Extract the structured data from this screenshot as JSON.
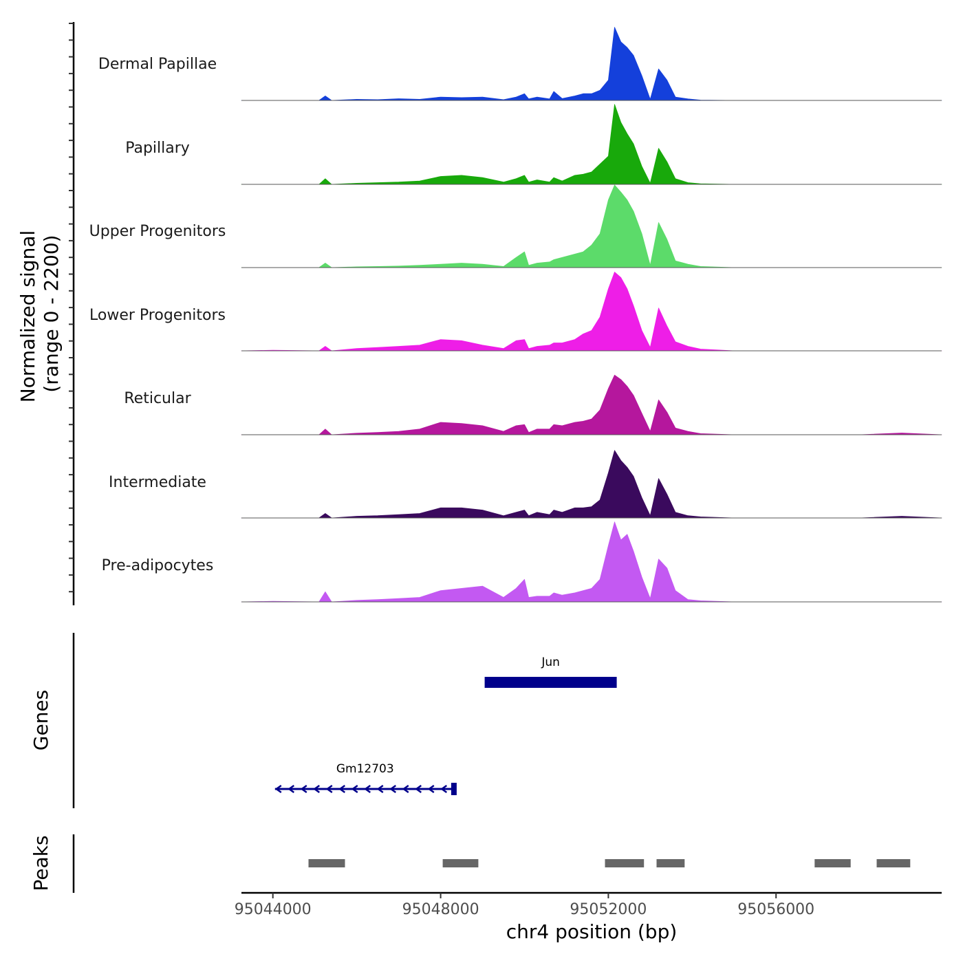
{
  "chart_data": {
    "type": "area",
    "title": "",
    "region": "chr4",
    "xlabel": "chr4 position (bp)",
    "xlim": [
      95043250,
      95059950
    ],
    "x_ticks": [
      "95044000",
      "95048000",
      "95052000",
      "95056000"
    ],
    "x_tick_values": [
      95044000,
      95048000,
      95052000,
      95056000
    ],
    "coverage": {
      "ylabel_line1": "Normalized signal",
      "ylabel_line2": "(range 0 - 2200)",
      "ylim": [
        0,
        2200
      ],
      "x_profile": [
        95043250,
        95044000,
        95045100,
        95045250,
        95045400,
        95046000,
        95046500,
        95047000,
        95047500,
        95048000,
        95048500,
        95049000,
        95049500,
        95049800,
        95050000,
        95050100,
        95050300,
        95050600,
        95050700,
        95050900,
        95051200,
        95051400,
        95051600,
        95051800,
        95052000,
        95052150,
        95052300,
        95052450,
        95052600,
        95052800,
        95053000,
        95053200,
        95053400,
        95053600,
        95053900,
        95054200,
        95055000,
        95056000,
        95057000,
        95058000,
        95059000,
        95059950
      ],
      "series": [
        {
          "name": "Dermal Papillae",
          "color": "#1440DB",
          "values": [
            0,
            0,
            0,
            120,
            0,
            30,
            20,
            45,
            30,
            90,
            75,
            90,
            20,
            90,
            180,
            40,
            90,
            40,
            240,
            50,
            120,
            180,
            180,
            270,
            540,
            1950,
            1560,
            1410,
            1200,
            660,
            30,
            840,
            540,
            90,
            40,
            10,
            0,
            0,
            0,
            0,
            0,
            0
          ]
        },
        {
          "name": "Papillary",
          "color": "#18A90B",
          "values": [
            0,
            0,
            0,
            150,
            0,
            30,
            45,
            60,
            90,
            210,
            240,
            180,
            60,
            150,
            240,
            60,
            120,
            60,
            180,
            90,
            240,
            270,
            330,
            540,
            750,
            2130,
            1650,
            1350,
            1080,
            480,
            30,
            960,
            600,
            150,
            45,
            15,
            0,
            0,
            0,
            0,
            0,
            0
          ]
        },
        {
          "name": "Upper Progenitors",
          "color": "#5CDB6A",
          "values": [
            0,
            0,
            0,
            120,
            0,
            20,
            30,
            40,
            60,
            90,
            120,
            90,
            30,
            270,
            420,
            60,
            120,
            150,
            210,
            270,
            360,
            420,
            600,
            900,
            1800,
            2200,
            2010,
            1800,
            1500,
            900,
            60,
            1200,
            750,
            180,
            90,
            30,
            0,
            0,
            0,
            0,
            0,
            0
          ]
        },
        {
          "name": "Lower Progenitors",
          "color": "#EE1EE7",
          "values": [
            0,
            15,
            0,
            120,
            0,
            60,
            90,
            120,
            150,
            300,
            270,
            150,
            60,
            270,
            300,
            60,
            120,
            150,
            210,
            210,
            300,
            450,
            540,
            900,
            1650,
            2100,
            1950,
            1650,
            1200,
            540,
            90,
            1140,
            660,
            240,
            120,
            45,
            0,
            0,
            0,
            0,
            0,
            0
          ]
        },
        {
          "name": "Reticular",
          "color": "#B5179D",
          "values": [
            0,
            0,
            0,
            150,
            0,
            40,
            60,
            90,
            150,
            330,
            300,
            240,
            90,
            240,
            270,
            60,
            150,
            150,
            270,
            240,
            330,
            360,
            420,
            660,
            1230,
            1590,
            1470,
            1290,
            1050,
            570,
            90,
            930,
            600,
            180,
            90,
            30,
            0,
            0,
            0,
            0,
            45,
            0
          ]
        },
        {
          "name": "Intermediate",
          "color": "#3A0A5D",
          "values": [
            0,
            0,
            0,
            120,
            0,
            45,
            60,
            90,
            120,
            270,
            270,
            210,
            60,
            150,
            210,
            60,
            150,
            90,
            210,
            150,
            270,
            270,
            300,
            480,
            1200,
            1800,
            1530,
            1350,
            1110,
            540,
            60,
            1050,
            630,
            150,
            60,
            30,
            0,
            0,
            0,
            0,
            45,
            0
          ]
        },
        {
          "name": "Pre-adipocytes",
          "color": "#C359F2",
          "values": [
            0,
            15,
            0,
            270,
            0,
            40,
            60,
            90,
            120,
            300,
            360,
            420,
            120,
            360,
            600,
            120,
            150,
            150,
            240,
            180,
            240,
            300,
            360,
            600,
            1500,
            2130,
            1650,
            1800,
            1350,
            660,
            90,
            1140,
            900,
            300,
            60,
            30,
            0,
            0,
            0,
            0,
            0,
            0
          ]
        }
      ]
    },
    "genes": {
      "ylabel": "Genes",
      "items": [
        {
          "name": "Jun",
          "start": 95049050,
          "end": 95052200,
          "strand": "+",
          "row": 0
        },
        {
          "name": "Gm12703",
          "start": 95044050,
          "end": 95048350,
          "strand": "-",
          "row": 1
        }
      ]
    },
    "peaks": {
      "ylabel": "Peaks",
      "intervals": [
        [
          95044850,
          95045720
        ],
        [
          95048050,
          95048900
        ],
        [
          95051920,
          95052850
        ],
        [
          95053150,
          95053820
        ],
        [
          95056920,
          95057780
        ],
        [
          95058400,
          95059200
        ]
      ]
    }
  }
}
